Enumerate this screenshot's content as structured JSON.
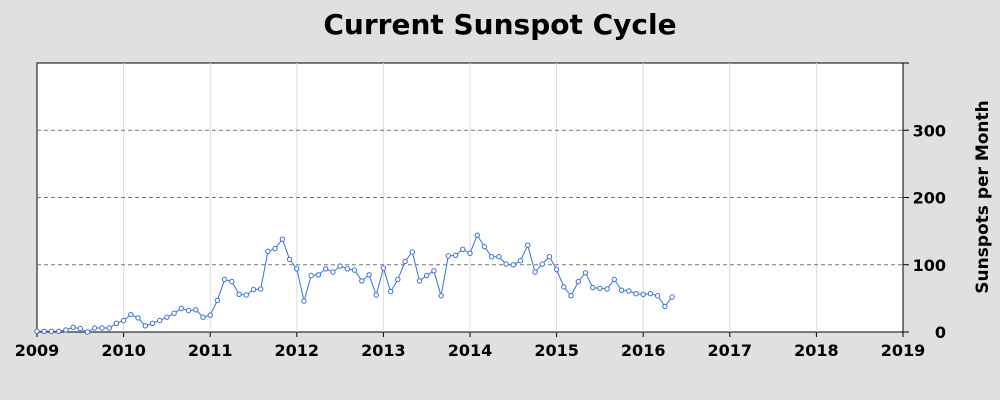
{
  "chart_data": {
    "type": "line",
    "title": "Current Sunspot Cycle",
    "xlabel": "",
    "ylabel": "Sunspots per Month",
    "xlim": [
      2009,
      2019
    ],
    "ylim": [
      0,
      400
    ],
    "x_ticks": [
      "2009",
      "2010",
      "2011",
      "2012",
      "2013",
      "2014",
      "2015",
      "2016",
      "2017",
      "2018",
      "2019"
    ],
    "y_ticks": [
      "0",
      "100",
      "200",
      "300"
    ],
    "y_axis_side": "right",
    "grid": {
      "x": "solid-light",
      "y": "dashed"
    },
    "line_color": "#3b6fd8",
    "marker_fill": "#ffffff",
    "start": "2009-01",
    "values": [
      1,
      1,
      1,
      1,
      3,
      7,
      5,
      0,
      6,
      6,
      6,
      13,
      17,
      26,
      21,
      9,
      13,
      17,
      22,
      28,
      35,
      32,
      33,
      22,
      25,
      47,
      78,
      75,
      56,
      55,
      63,
      64,
      120,
      124,
      138,
      108,
      94,
      46,
      84,
      85,
      94,
      89,
      98,
      94,
      92,
      76,
      85,
      55,
      95,
      60,
      78,
      105,
      119,
      76,
      84,
      91,
      54,
      113,
      114,
      123,
      117,
      144,
      127,
      112,
      112,
      101,
      100,
      106,
      129,
      89,
      101,
      112,
      93,
      67,
      54,
      75,
      88,
      66,
      65,
      64,
      78,
      62,
      61,
      57,
      56,
      57,
      54,
      38,
      52
    ]
  }
}
